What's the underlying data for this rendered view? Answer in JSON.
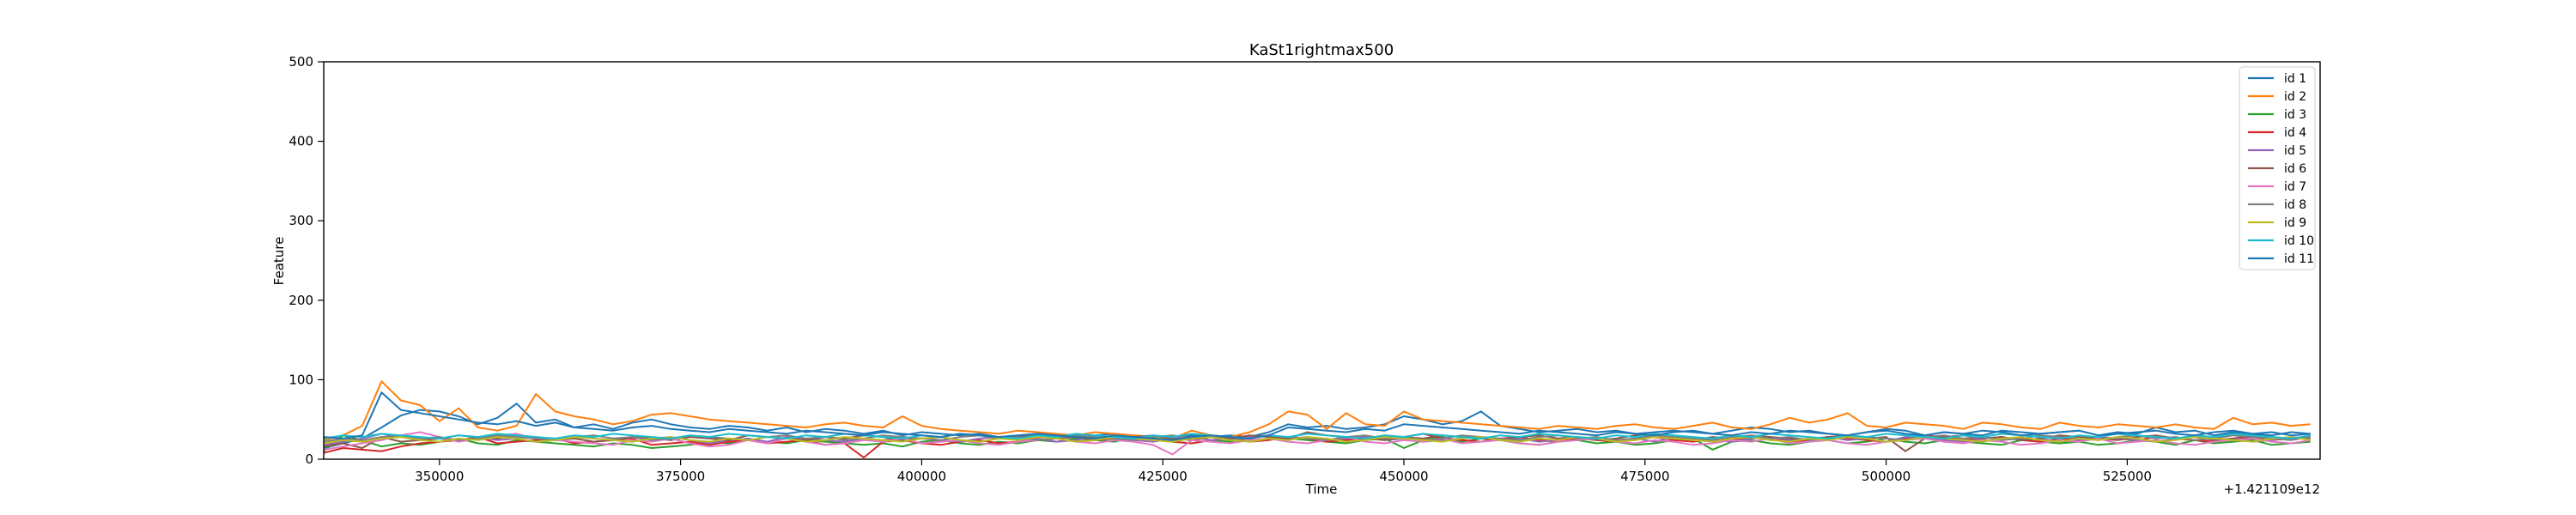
{
  "chart_data": {
    "type": "line",
    "title": "KaSt1rightmax500",
    "xlabel": "Time",
    "ylabel": "Feature",
    "x_offset_label": "+1.421109e12",
    "xlim": [
      338000,
      545000
    ],
    "ylim": [
      0,
      500
    ],
    "xticks": [
      350000,
      375000,
      400000,
      425000,
      450000,
      475000,
      500000,
      525000
    ],
    "yticks": [
      0,
      100,
      200,
      300,
      400,
      500
    ],
    "grid": false,
    "legend_position": "top-right",
    "x": [
      338000,
      340000,
      342000,
      344000,
      346000,
      348000,
      350000,
      352000,
      354000,
      356000,
      358000,
      360000,
      362000,
      364000,
      366000,
      368000,
      370000,
      372000,
      374000,
      376000,
      378000,
      380000,
      382000,
      384000,
      386000,
      388000,
      390000,
      392000,
      394000,
      396000,
      398000,
      400000,
      402000,
      404000,
      406000,
      408000,
      410000,
      412000,
      414000,
      416000,
      418000,
      420000,
      422000,
      424000,
      426000,
      428000,
      430000,
      432000,
      434000,
      436000,
      438000,
      440000,
      442000,
      444000,
      446000,
      448000,
      450000,
      452000,
      454000,
      456000,
      458000,
      460000,
      462000,
      464000,
      466000,
      468000,
      470000,
      472000,
      474000,
      476000,
      478000,
      480000,
      482000,
      484000,
      486000,
      488000,
      490000,
      492000,
      494000,
      496000,
      498000,
      500000,
      502000,
      504000,
      506000,
      508000,
      510000,
      512000,
      514000,
      516000,
      518000,
      520000,
      522000,
      524000,
      526000,
      528000,
      530000,
      532000,
      534000,
      536000,
      538000,
      540000,
      542000,
      544000
    ],
    "series": [
      {
        "name": "id 1",
        "color": "#1f77b4",
        "values": [
          14,
          20,
          26,
          40,
          55,
          62,
          60,
          54,
          44,
          52,
          70,
          46,
          50,
          40,
          44,
          38,
          46,
          50,
          44,
          40,
          38,
          42,
          40,
          36,
          40,
          34,
          38,
          36,
          32,
          36,
          30,
          34,
          32,
          30,
          32,
          28,
          30,
          32,
          30,
          28,
          30,
          32,
          30,
          28,
          26,
          30,
          28,
          30,
          28,
          34,
          44,
          40,
          42,
          38,
          40,
          44,
          54,
          50,
          44,
          48,
          60,
          42,
          38,
          34,
          36,
          38,
          34,
          36,
          32,
          34,
          36,
          34,
          32,
          36,
          40,
          38,
          34,
          36,
          32,
          30,
          34,
          38,
          36,
          30,
          34,
          32,
          30,
          36,
          34,
          32,
          34,
          36,
          30,
          34,
          32,
          40,
          34,
          36,
          30,
          34,
          32,
          34,
          30,
          32
        ]
      },
      {
        "name": "id 2",
        "color": "#ff7f0e",
        "values": [
          24,
          30,
          42,
          98,
          74,
          68,
          48,
          64,
          40,
          36,
          42,
          82,
          60,
          54,
          50,
          44,
          48,
          56,
          58,
          54,
          50,
          48,
          46,
          44,
          42,
          40,
          44,
          46,
          42,
          40,
          54,
          42,
          38,
          36,
          34,
          32,
          36,
          34,
          32,
          30,
          34,
          32,
          30,
          28,
          26,
          36,
          30,
          28,
          34,
          44,
          60,
          56,
          38,
          58,
          44,
          42,
          60,
          50,
          48,
          46,
          44,
          42,
          40,
          38,
          42,
          40,
          38,
          42,
          44,
          40,
          38,
          42,
          46,
          40,
          38,
          44,
          52,
          46,
          50,
          58,
          42,
          40,
          46,
          44,
          42,
          38,
          46,
          44,
          40,
          38,
          46,
          42,
          40,
          44,
          42,
          40,
          44,
          40,
          38,
          52,
          44,
          46,
          42,
          44
        ]
      },
      {
        "name": "id 3",
        "color": "#2ca02c",
        "values": [
          10,
          30,
          24,
          16,
          20,
          18,
          22,
          26,
          20,
          18,
          24,
          22,
          20,
          18,
          16,
          20,
          18,
          14,
          16,
          18,
          22,
          20,
          24,
          22,
          20,
          24,
          22,
          20,
          18,
          20,
          16,
          22,
          24,
          20,
          18,
          22,
          20,
          24,
          22,
          26,
          24,
          22,
          28,
          26,
          22,
          20,
          24,
          22,
          28,
          30,
          26,
          24,
          22,
          20,
          24,
          26,
          14,
          24,
          28,
          22,
          26,
          24,
          20,
          18,
          22,
          24,
          20,
          22,
          18,
          20,
          24,
          26,
          12,
          22,
          24,
          20,
          18,
          22,
          24,
          20,
          22,
          26,
          22,
          20,
          24,
          22,
          20,
          18,
          24,
          22,
          20,
          22,
          18,
          20,
          24,
          22,
          18,
          24,
          20,
          22,
          24,
          18,
          20,
          22
        ]
      },
      {
        "name": "id 4",
        "color": "#d62728",
        "values": [
          8,
          14,
          12,
          10,
          16,
          20,
          22,
          24,
          28,
          20,
          22,
          24,
          26,
          20,
          22,
          24,
          26,
          18,
          20,
          22,
          18,
          22,
          24,
          20,
          22,
          24,
          18,
          20,
          2,
          22,
          24,
          20,
          18,
          22,
          24,
          20,
          22,
          24,
          26,
          22,
          24,
          26,
          28,
          24,
          22,
          20,
          24,
          26,
          22,
          24,
          28,
          26,
          22,
          24,
          26,
          30,
          28,
          32,
          26,
          24,
          22,
          26,
          28,
          24,
          22,
          26,
          24,
          22,
          26,
          28,
          24,
          22,
          26,
          24,
          28,
          26,
          22,
          24,
          28,
          26,
          24,
          22,
          26,
          30,
          28,
          24,
          26,
          28,
          24,
          22,
          26,
          24,
          28,
          26,
          24,
          28,
          26,
          24,
          22,
          26,
          28,
          24,
          26,
          28
        ]
      },
      {
        "name": "id 5",
        "color": "#9467bd",
        "values": [
          18,
          22,
          26,
          32,
          28,
          24,
          26,
          30,
          28,
          24,
          26,
          22,
          24,
          28,
          26,
          24,
          22,
          26,
          28,
          24,
          20,
          24,
          26,
          22,
          28,
          26,
          24,
          22,
          26,
          24,
          28,
          26,
          24,
          22,
          26,
          28,
          24,
          26,
          22,
          24,
          28,
          26,
          24,
          22,
          26,
          28,
          24,
          26,
          28,
          30,
          26,
          28,
          24,
          26,
          28,
          24,
          26,
          22,
          24,
          26,
          28,
          24,
          26,
          22,
          24,
          28,
          26,
          24,
          26,
          22,
          28,
          26,
          24,
          22,
          26,
          28,
          24,
          26,
          28,
          24,
          26,
          22,
          28,
          26,
          24,
          22,
          26,
          28,
          24,
          26,
          22,
          24,
          28,
          26,
          24,
          22,
          26,
          28,
          24,
          26,
          22,
          24,
          28,
          26
        ]
      },
      {
        "name": "id 6",
        "color": "#8c564b",
        "values": [
          16,
          20,
          14,
          28,
          22,
          24,
          26,
          24,
          28,
          26,
          30,
          28,
          24,
          26,
          22,
          24,
          28,
          26,
          24,
          28,
          26,
          24,
          30,
          28,
          26,
          24,
          28,
          26,
          30,
          28,
          24,
          26,
          28,
          24,
          22,
          26,
          28,
          30,
          26,
          28,
          24,
          26,
          28,
          30,
          26,
          24,
          28,
          26,
          30,
          28,
          26,
          34,
          30,
          28,
          26,
          24,
          28,
          26,
          30,
          28,
          26,
          24,
          28,
          30,
          26,
          28,
          24,
          26,
          30,
          28,
          26,
          24,
          28,
          26,
          30,
          28,
          26,
          24,
          28,
          30,
          26,
          28,
          10,
          26,
          28,
          30,
          26,
          28,
          24,
          26,
          30,
          28,
          26,
          24,
          28,
          30,
          26,
          28,
          24,
          26,
          30,
          28,
          26,
          28
        ]
      },
      {
        "name": "id 7",
        "color": "#e377c2",
        "values": [
          12,
          16,
          20,
          24,
          30,
          34,
          28,
          22,
          26,
          30,
          32,
          26,
          24,
          22,
          20,
          18,
          24,
          22,
          26,
          20,
          16,
          18,
          24,
          20,
          26,
          22,
          18,
          20,
          24,
          22,
          26,
          20,
          22,
          24,
          20,
          18,
          22,
          24,
          26,
          22,
          20,
          24,
          22,
          18,
          6,
          24,
          22,
          20,
          24,
          26,
          22,
          20,
          24,
          28,
          22,
          20,
          24,
          22,
          26,
          20,
          22,
          24,
          20,
          18,
          22,
          24,
          26,
          22,
          20,
          24,
          22,
          18,
          20,
          24,
          22,
          26,
          20,
          22,
          24,
          20,
          18,
          22,
          24,
          26,
          22,
          20,
          24,
          22,
          18,
          20,
          24,
          22,
          26,
          20,
          22,
          24,
          20,
          18,
          22,
          24,
          26,
          22,
          20,
          24
        ]
      },
      {
        "name": "id 8",
        "color": "#7f7f7f",
        "values": [
          22,
          26,
          24,
          28,
          30,
          26,
          28,
          24,
          26,
          30,
          28,
          26,
          24,
          28,
          30,
          26,
          28,
          24,
          26,
          30,
          28,
          26,
          24,
          28,
          30,
          26,
          28,
          24,
          26,
          30,
          28,
          26,
          24,
          28,
          30,
          26,
          28,
          24,
          26,
          30,
          28,
          26,
          24,
          28,
          30,
          26,
          28,
          24,
          26,
          30,
          28,
          26,
          24,
          28,
          30,
          26,
          28,
          24,
          26,
          30,
          28,
          26,
          24,
          28,
          30,
          26,
          28,
          24,
          26,
          30,
          28,
          26,
          24,
          28,
          30,
          26,
          28,
          24,
          26,
          30,
          28,
          26,
          24,
          28,
          30,
          26,
          28,
          24,
          26,
          30,
          28,
          26,
          24,
          28,
          30,
          26,
          28,
          24,
          26,
          30,
          28,
          26,
          24,
          28
        ]
      },
      {
        "name": "id 9",
        "color": "#bcbd22",
        "values": [
          20,
          24,
          22,
          26,
          28,
          24,
          22,
          26,
          24,
          28,
          26,
          22,
          24,
          28,
          26,
          24,
          22,
          26,
          28,
          24,
          22,
          26,
          24,
          28,
          26,
          22,
          24,
          28,
          26,
          24,
          22,
          26,
          28,
          24,
          22,
          26,
          24,
          28,
          26,
          22,
          24,
          28,
          26,
          24,
          22,
          26,
          28,
          24,
          22,
          26,
          24,
          28,
          26,
          22,
          24,
          28,
          26,
          24,
          22,
          26,
          28,
          24,
          22,
          26,
          24,
          28,
          26,
          22,
          24,
          28,
          26,
          24,
          22,
          26,
          28,
          24,
          22,
          26,
          24,
          28,
          26,
          22,
          24,
          28,
          26,
          24,
          22,
          26,
          28,
          24,
          22,
          26,
          24,
          28,
          26,
          22,
          24,
          28,
          26,
          24,
          22,
          26,
          28,
          24
        ]
      },
      {
        "name": "id 10",
        "color": "#17becf",
        "values": [
          26,
          30,
          28,
          32,
          30,
          28,
          26,
          30,
          28,
          32,
          30,
          28,
          26,
          30,
          28,
          32,
          30,
          28,
          26,
          30,
          28,
          32,
          30,
          28,
          26,
          30,
          28,
          32,
          30,
          28,
          26,
          30,
          28,
          32,
          30,
          28,
          26,
          30,
          28,
          32,
          30,
          28,
          26,
          30,
          28,
          32,
          30,
          28,
          26,
          30,
          28,
          32,
          30,
          28,
          26,
          30,
          28,
          32,
          30,
          28,
          26,
          30,
          28,
          32,
          30,
          28,
          26,
          30,
          28,
          32,
          30,
          28,
          26,
          30,
          28,
          32,
          30,
          28,
          26,
          30,
          28,
          32,
          30,
          28,
          26,
          30,
          28,
          32,
          30,
          28,
          26,
          30,
          28,
          32,
          30,
          28,
          26,
          30,
          28,
          32,
          30,
          28,
          26,
          30
        ]
      },
      {
        "name": "id 11",
        "color": "#1f77b4",
        "values": [
          28,
          26,
          30,
          84,
          62,
          58,
          54,
          50,
          46,
          44,
          48,
          42,
          46,
          40,
          38,
          36,
          40,
          42,
          38,
          36,
          34,
          38,
          36,
          34,
          32,
          36,
          34,
          32,
          30,
          34,
          32,
          30,
          28,
          32,
          30,
          28,
          30,
          32,
          30,
          28,
          26,
          30,
          28,
          26,
          24,
          28,
          30,
          28,
          26,
          30,
          40,
          38,
          36,
          34,
          38,
          36,
          44,
          42,
          40,
          38,
          36,
          34,
          32,
          36,
          34,
          32,
          30,
          34,
          32,
          30,
          34,
          36,
          32,
          30,
          34,
          32,
          36,
          34,
          32,
          30,
          34,
          36,
          32,
          30,
          34,
          32,
          36,
          34,
          30,
          32,
          34,
          36,
          30,
          32,
          34,
          36,
          32,
          30,
          34,
          36,
          32,
          30,
          34,
          32
        ]
      }
    ]
  }
}
